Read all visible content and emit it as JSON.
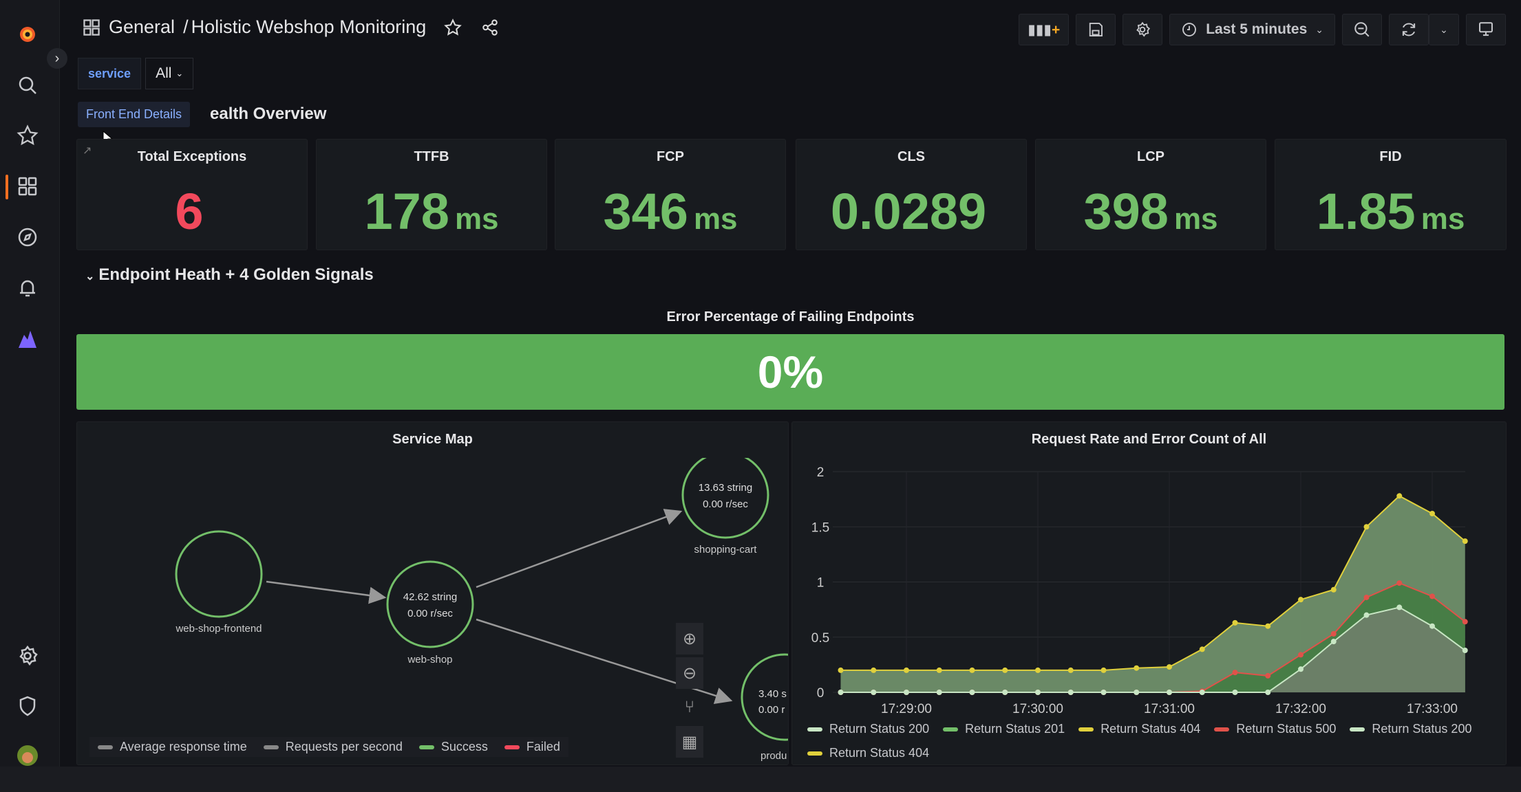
{
  "header": {
    "breadcrumb_folder": "General",
    "breadcrumb_sep": "/",
    "dashboard_title": "Holistic Webshop Monitoring"
  },
  "toolbar": {
    "time_range": "Last 5 minutes"
  },
  "variables": {
    "service_label": "service",
    "service_value": "All"
  },
  "tooltip": "Front End Details",
  "rows": {
    "health": "ealth Overview",
    "endpoint": "Endpoint Heath + 4 Golden Signals"
  },
  "stats": [
    {
      "title": "Total Exceptions",
      "value": "6",
      "unit": "",
      "color": "#f2495c"
    },
    {
      "title": "TTFB",
      "value": "178",
      "unit": "ms",
      "color": "#73bf69"
    },
    {
      "title": "FCP",
      "value": "346",
      "unit": "ms",
      "color": "#73bf69"
    },
    {
      "title": "CLS",
      "value": "0.0289",
      "unit": "",
      "color": "#73bf69"
    },
    {
      "title": "LCP",
      "value": "398",
      "unit": "ms",
      "color": "#73bf69"
    },
    {
      "title": "FID",
      "value": "1.85",
      "unit": "ms",
      "color": "#73bf69"
    }
  ],
  "gauge": {
    "title": "Error Percentage of Failing Endpoints",
    "value": "0%",
    "color": "#5aad56"
  },
  "service_map": {
    "title": "Service Map",
    "nodes": [
      {
        "name": "web-shop-frontend",
        "line1": "",
        "line2": ""
      },
      {
        "name": "web-shop",
        "line1": "42.62 string",
        "line2": "0.00 r/sec"
      },
      {
        "name": "shopping-cart",
        "line1": "13.63 string",
        "line2": "0.00 r/sec"
      },
      {
        "name": "produ",
        "line1": "3.40 s",
        "line2": "0.00 r"
      }
    ],
    "legend": [
      "Average response time",
      "Requests per second",
      "Success",
      "Failed"
    ]
  },
  "chart_data": {
    "type": "area",
    "title": "Request Rate and Error Count of All",
    "x": [
      "17:28:30",
      "17:28:45",
      "17:29:00",
      "17:29:15",
      "17:29:30",
      "17:29:45",
      "17:30:00",
      "17:30:15",
      "17:30:30",
      "17:30:45",
      "17:31:00",
      "17:31:15",
      "17:31:30",
      "17:31:45",
      "17:32:00",
      "17:32:15",
      "17:32:30",
      "17:32:45",
      "17:33:00",
      "17:33:15"
    ],
    "xticks": [
      "17:29:00",
      "17:30:00",
      "17:31:00",
      "17:32:00",
      "17:33:00"
    ],
    "yticks": [
      "0",
      "0.5",
      "1",
      "1.5",
      "2"
    ],
    "ylim": [
      0,
      2
    ],
    "grid": true,
    "legend_position": "bottom",
    "series": [
      {
        "name": "Return Status 404",
        "color": "#e0d03c",
        "values": [
          0.2,
          0.2,
          0.2,
          0.2,
          0.2,
          0.2,
          0.2,
          0.2,
          0.2,
          0.22,
          0.23,
          0.39,
          0.63,
          0.6,
          0.84,
          0.93,
          1.5,
          1.78,
          1.62,
          1.37
        ]
      },
      {
        "name": "Return Status 500",
        "color": "#e0524a",
        "values": [
          0,
          0,
          0,
          0,
          0,
          0,
          0,
          0,
          0,
          0,
          0,
          0.01,
          0.18,
          0.15,
          0.34,
          0.53,
          0.86,
          0.99,
          0.87,
          0.64
        ]
      },
      {
        "name": "Return Status 200",
        "color": "#c8e6c4",
        "values": [
          0,
          0,
          0,
          0,
          0,
          0,
          0,
          0,
          0,
          0,
          0,
          0,
          0,
          0,
          0.21,
          0.46,
          0.7,
          0.77,
          0.6,
          0.38
        ]
      }
    ],
    "legend": [
      {
        "name": "Return Status 200",
        "color": "#c8e6c4"
      },
      {
        "name": "Return Status 201",
        "color": "#73bf69"
      },
      {
        "name": "Return Status 404",
        "color": "#e0d03c"
      },
      {
        "name": "Return Status 500",
        "color": "#e0524a"
      },
      {
        "name": "Return Status 200",
        "color": "#c8e6c4"
      },
      {
        "name": "Return Status 404",
        "color": "#e0d03c"
      }
    ]
  }
}
